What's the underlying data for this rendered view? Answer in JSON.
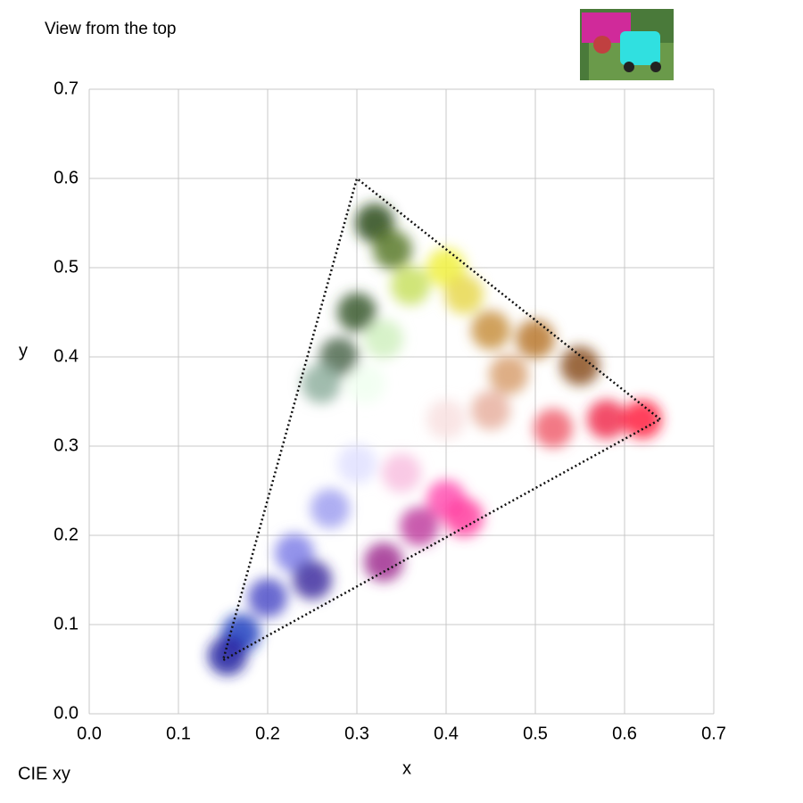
{
  "chart_data": {
    "type": "scatter",
    "title": "View from the top",
    "subtitle": "CIE xy",
    "x_label": "x",
    "y_label": "y",
    "xlim": [
      0,
      0.7
    ],
    "ylim": [
      0,
      0.7
    ],
    "xticks": [
      {
        "value": 0,
        "label": "0.0"
      },
      0.1,
      0.2,
      0.3,
      0.4,
      0.5,
      0.6,
      0.7
    ],
    "yticks": [
      {
        "value": 0,
        "label": "0.0"
      },
      0.1,
      0.2,
      0.3,
      0.4,
      0.5,
      0.6,
      0.7
    ],
    "grid": true,
    "gamut": {
      "x": [
        0.64,
        0.3,
        0.15,
        0.64
      ],
      "y": [
        0.33,
        0.6,
        0.06,
        0.33
      ],
      "color": "#111111"
    },
    "points": {
      "x": [
        0.32,
        0.34,
        0.36,
        0.4,
        0.42,
        0.28,
        0.3,
        0.33,
        0.26,
        0.31,
        0.45,
        0.5,
        0.55,
        0.47,
        0.58,
        0.62,
        0.52,
        0.45,
        0.4,
        0.4,
        0.42,
        0.37,
        0.33,
        0.35,
        0.3,
        0.27,
        0.23,
        0.2,
        0.17,
        0.155,
        0.25
      ],
      "y": [
        0.55,
        0.52,
        0.48,
        0.5,
        0.47,
        0.4,
        0.45,
        0.42,
        0.37,
        0.37,
        0.43,
        0.42,
        0.39,
        0.38,
        0.33,
        0.33,
        0.32,
        0.34,
        0.33,
        0.24,
        0.22,
        0.21,
        0.17,
        0.27,
        0.28,
        0.23,
        0.18,
        0.13,
        0.09,
        0.065,
        0.15
      ],
      "colors": [
        "#2a4a1a",
        "#5a7a2a",
        "#c8e060",
        "#f0f040",
        "#e8d850",
        "#506a50",
        "#3a5a30",
        "#d0f0c0",
        "#90b0a0",
        "#f0fff0",
        "#c89040",
        "#b87830",
        "#8a5020",
        "#d8a070",
        "#f03050",
        "#ff2040",
        "#f06070",
        "#e8b0a0",
        "#f8e0e0",
        "#ff50b0",
        "#ff40a0",
        "#c040a0",
        "#a03090",
        "#f8c0e0",
        "#e0e0ff",
        "#a0a0f0",
        "#8080e8",
        "#5050c8",
        "#2040c0",
        "#2020a0",
        "#4030a0"
      ]
    }
  }
}
